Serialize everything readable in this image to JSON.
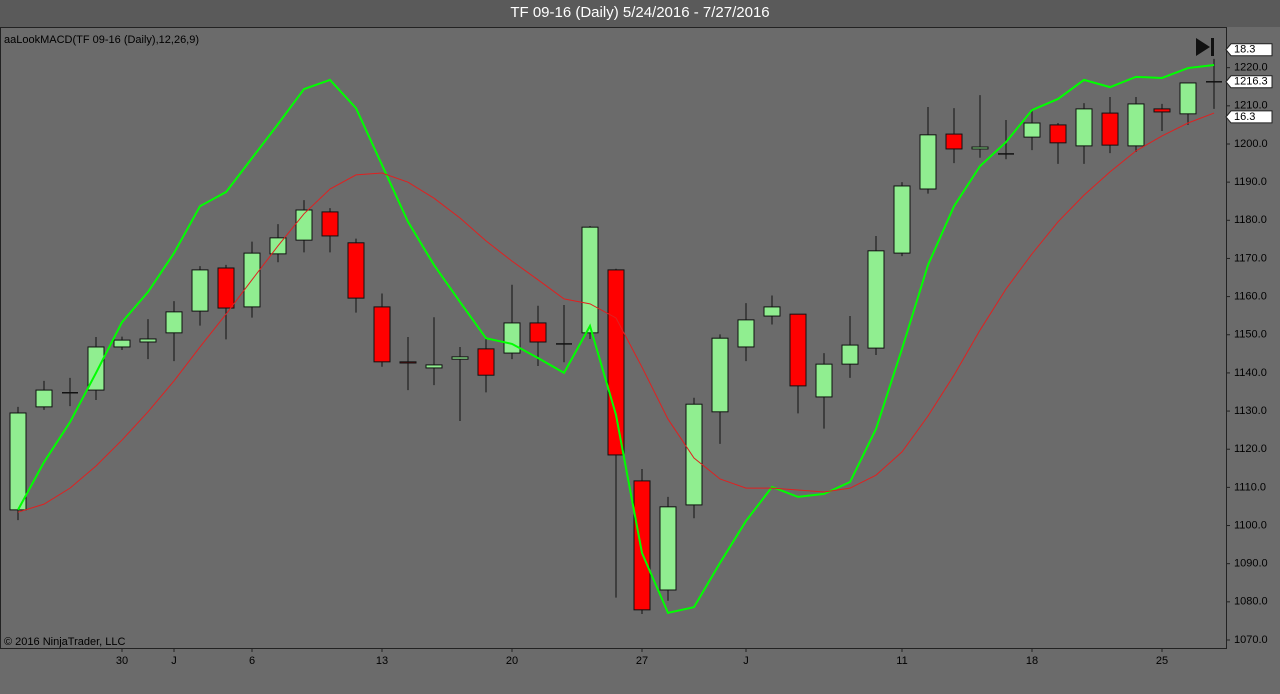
{
  "chart_data": {
    "type": "candlestick",
    "title": "TF 09-16 (Daily)  5/24/2016 - 7/27/2016",
    "indicator_label": "aaLookMACD(TF 09-16 (Daily),12,26,9)",
    "copyright": "© 2016 NinjaTrader, LLC",
    "categories": [
      null,
      null,
      null,
      null,
      "30",
      null,
      "J",
      null,
      null,
      "6",
      null,
      null,
      null,
      null,
      "13",
      null,
      null,
      null,
      null,
      "20",
      null,
      null,
      null,
      null,
      "27",
      null,
      null,
      null,
      "J",
      null,
      null,
      null,
      null,
      null,
      "11",
      null,
      null,
      null,
      null,
      "18",
      null,
      null,
      null,
      null,
      "25",
      null,
      null
    ],
    "open": [
      1104.1,
      1131.1,
      1134.8,
      1135.5,
      1146.8,
      1148.1,
      1150.5,
      1156.2,
      1167.5,
      1157.3,
      1171.2,
      1174.8,
      1182.2,
      1174.1,
      1157.3,
      1142.9,
      1141.3,
      1143.6,
      1146.3,
      1145.2,
      1153.1,
      1147.6,
      1150.5,
      1167.0,
      1111.7,
      1083.1,
      1105.4,
      1129.8,
      1146.8,
      1154.9,
      1155.4,
      1133.7,
      1142.3,
      1146.5,
      1171.4,
      1188.2,
      1202.6,
      1198.7,
      1197.4,
      1201.8,
      1205.0,
      1199.5,
      1208.1,
      1199.5,
      1209.2,
      1207.9,
      1216.3
    ],
    "high": [
      1131.1,
      1137.9,
      1138.7,
      1149.4,
      1149.5,
      1154.1,
      1158.8,
      1168.0,
      1168.3,
      1174.4,
      1179.0,
      1185.3,
      1183.2,
      1175.2,
      1160.8,
      1149.4,
      1154.6,
      1146.8,
      1149.1,
      1163.1,
      1157.6,
      1157.8,
      1178.5,
      1167.3,
      1114.8,
      1107.5,
      1133.5,
      1150.1,
      1158.3,
      1160.3,
      1155.4,
      1145.2,
      1154.9,
      1175.9,
      1190.0,
      1209.7,
      1209.4,
      1212.8,
      1206.3,
      1209.2,
      1205.5,
      1210.7,
      1212.3,
      1212.3,
      1210.5,
      1216.0,
      1222.3
    ],
    "low": [
      1101.4,
      1130.3,
      1131.3,
      1132.9,
      1146.0,
      1143.6,
      1143.1,
      1152.4,
      1148.8,
      1154.5,
      1169.0,
      1171.6,
      1171.6,
      1155.8,
      1141.6,
      1135.5,
      1136.8,
      1127.4,
      1134.9,
      1143.6,
      1141.8,
      1142.8,
      1148.9,
      1081.1,
      1076.8,
      1080.3,
      1101.9,
      1121.4,
      1143.1,
      1152.7,
      1129.4,
      1125.4,
      1138.7,
      1144.7,
      1170.6,
      1187.0,
      1195.0,
      1196.4,
      1196.0,
      1198.4,
      1194.8,
      1194.8,
      1197.6,
      1197.9,
      1203.4,
      1205.0,
      1209.2
    ],
    "close": [
      1129.5,
      1135.5,
      1134.8,
      1146.8,
      1148.6,
      1148.9,
      1156.0,
      1167.0,
      1157.0,
      1171.4,
      1175.4,
      1182.7,
      1175.9,
      1159.6,
      1142.9,
      1142.6,
      1142.1,
      1144.2,
      1139.4,
      1153.1,
      1148.1,
      1147.6,
      1178.2,
      1118.5,
      1077.9,
      1104.9,
      1131.8,
      1149.1,
      1153.9,
      1157.3,
      1136.6,
      1142.3,
      1147.3,
      1172.0,
      1189.0,
      1202.4,
      1198.7,
      1199.2,
      1197.4,
      1205.5,
      1200.3,
      1209.2,
      1199.7,
      1210.5,
      1208.4,
      1216.0,
      1216.3
    ],
    "up_color": "#90ee90",
    "down_color": "#ff0000",
    "series": [
      {
        "color": "#00ff00",
        "last_value": 18.3,
        "values": [
          1104.1,
          1116.6,
          1127.1,
          1140.0,
          1153.3,
          1161.2,
          1171.4,
          1183.7,
          1187.4,
          1196.3,
          1205.2,
          1214.4,
          1216.8,
          1209.4,
          1194.5,
          1179.6,
          1168.3,
          1158.6,
          1149.1,
          1147.6,
          1143.9,
          1140.0,
          1152.3,
          1129.0,
          1092.8,
          1077.1,
          1078.6,
          1090.2,
          1101.2,
          1110.1,
          1107.5,
          1108.3,
          1111.4,
          1125.3,
          1146.3,
          1168.3,
          1183.7,
          1194.2,
          1200.5,
          1208.9,
          1211.8,
          1216.8,
          1214.9,
          1217.6,
          1217.3,
          1219.9,
          1220.7
        ]
      },
      {
        "color": "#e02020",
        "last_value": 16.3,
        "values": [
          1103.5,
          1105.6,
          1109.8,
          1115.6,
          1122.4,
          1129.8,
          1137.9,
          1146.8,
          1155.4,
          1164.4,
          1173.3,
          1181.7,
          1188.2,
          1191.9,
          1192.4,
          1190.0,
          1185.8,
          1180.6,
          1174.6,
          1169.3,
          1164.4,
          1159.4,
          1158.1,
          1154.4,
          1141.5,
          1127.9,
          1117.7,
          1112.2,
          1109.8,
          1109.8,
          1109.3,
          1108.8,
          1109.8,
          1113.2,
          1119.3,
          1128.7,
          1139.4,
          1151.2,
          1162.0,
          1171.2,
          1179.6,
          1186.6,
          1192.7,
          1198.2,
          1202.1,
          1205.5,
          1208.1
        ]
      }
    ],
    "last_price": 1216.3,
    "ylim": [
      1067.9,
      1230.4
    ],
    "yticks": [
      {
        "value": 1070,
        "label": "1070.0"
      },
      {
        "value": 1080,
        "label": "1080.0"
      },
      {
        "value": 1090,
        "label": "1090.0"
      },
      {
        "value": 1100,
        "label": "1100.0"
      },
      {
        "value": 1110,
        "label": "1110.0"
      },
      {
        "value": 1120,
        "label": "1120.0"
      },
      {
        "value": 1130,
        "label": "1130.0"
      },
      {
        "value": 1140,
        "label": "1140.0"
      },
      {
        "value": 1150,
        "label": "1150.0"
      },
      {
        "value": 1160,
        "label": "1160.0"
      },
      {
        "value": 1170,
        "label": "1170.0"
      },
      {
        "value": 1180,
        "label": "1180.0"
      },
      {
        "value": 1190,
        "label": "1190.0"
      },
      {
        "value": 1200,
        "label": "1200.0"
      },
      {
        "value": 1210,
        "label": "1210.0"
      },
      {
        "value": 1220,
        "label": "1220.0"
      }
    ]
  }
}
